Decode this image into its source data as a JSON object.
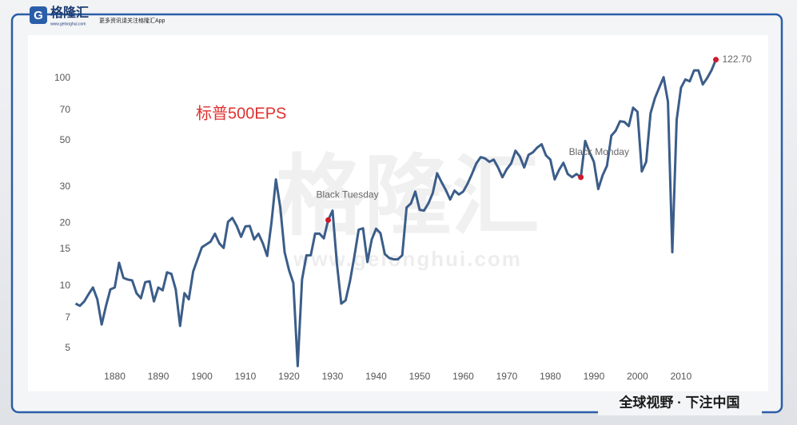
{
  "header": {
    "logo": "格隆汇",
    "site": "www.gelonghui.com",
    "tagline": "更多资讯请关注格隆汇App"
  },
  "watermark": {
    "main": "格隆汇",
    "site": "www.gelonghui.com"
  },
  "footer": "全球视野 · 下注中国",
  "chart_data": {
    "type": "line",
    "title": "标普500EPS",
    "color": "#3b5d89",
    "log_y": true,
    "grid": false,
    "x": [
      1871,
      1872,
      1873,
      1874,
      1875,
      1876,
      1877,
      1878,
      1879,
      1880,
      1881,
      1882,
      1883,
      1884,
      1885,
      1886,
      1887,
      1888,
      1889,
      1890,
      1891,
      1892,
      1893,
      1894,
      1895,
      1896,
      1897,
      1898,
      1899,
      1900,
      1901,
      1902,
      1903,
      1904,
      1905,
      1906,
      1907,
      1908,
      1909,
      1910,
      1911,
      1912,
      1913,
      1914,
      1915,
      1916,
      1917,
      1918,
      1919,
      1920,
      1921,
      1922,
      1923,
      1924,
      1925,
      1926,
      1927,
      1928,
      1929,
      1930,
      1931,
      1932,
      1933,
      1934,
      1935,
      1936,
      1937,
      1938,
      1939,
      1940,
      1941,
      1942,
      1943,
      1944,
      1945,
      1946,
      1947,
      1948,
      1949,
      1950,
      1951,
      1952,
      1953,
      1954,
      1955,
      1956,
      1957,
      1958,
      1959,
      1960,
      1961,
      1962,
      1963,
      1964,
      1965,
      1966,
      1967,
      1968,
      1969,
      1970,
      1971,
      1972,
      1973,
      1974,
      1975,
      1976,
      1977,
      1978,
      1979,
      1980,
      1981,
      1982,
      1983,
      1984,
      1985,
      1986,
      1987,
      1988,
      1989,
      1990,
      1991,
      1992,
      1993,
      1994,
      1995,
      1996,
      1997,
      1998,
      1999,
      2000,
      2001,
      2002,
      2003,
      2004,
      2005,
      2006,
      2007,
      2008,
      2009,
      2010,
      2011,
      2012,
      2013,
      2014,
      2015,
      2016,
      2017,
      2018
    ],
    "values": [
      8.2,
      8.0,
      8.4,
      9.1,
      9.8,
      8.6,
      6.5,
      8.0,
      9.6,
      9.8,
      12.9,
      10.9,
      10.7,
      10.6,
      9.2,
      8.7,
      10.4,
      10.5,
      8.4,
      9.8,
      9.5,
      11.6,
      11.4,
      9.6,
      6.4,
      9.2,
      8.6,
      11.7,
      13.4,
      15.3,
      15.8,
      16.3,
      17.8,
      16.0,
      15.2,
      20.3,
      21.2,
      19.4,
      17.2,
      19.3,
      19.4,
      16.7,
      17.8,
      16.0,
      13.9,
      20.3,
      32.5,
      23.8,
      14.5,
      11.9,
      10.3,
      4.1,
      10.7,
      14.0,
      14.0,
      17.8,
      17.8,
      16.9,
      20.7,
      23.0,
      12.8,
      8.2,
      8.5,
      10.5,
      13.8,
      18.6,
      18.9,
      13.0,
      16.7,
      18.8,
      17.9,
      14.2,
      13.6,
      13.4,
      13.4,
      14.0,
      23.8,
      24.9,
      28.4,
      23.2,
      23.0,
      24.9,
      27.9,
      34.8,
      31.6,
      28.9,
      26.0,
      28.7,
      27.5,
      28.4,
      31.0,
      34.5,
      38.8,
      41.6,
      41.0,
      39.5,
      40.5,
      37.1,
      33.3,
      36.4,
      38.8,
      44.7,
      41.9,
      37.1,
      42.7,
      43.9,
      46.3,
      48.0,
      42.4,
      40.5,
      32.5,
      36.1,
      39.1,
      34.5,
      33.3,
      34.5,
      33.3,
      49.8,
      43.9,
      39.5,
      29.2,
      34.0,
      37.8,
      52.8,
      55.8,
      62.0,
      61.5,
      58.7,
      72.0,
      68.8,
      35.5,
      39.5,
      67.6,
      80,
      90,
      101,
      77.0,
      14.5,
      63.0,
      90,
      98.5,
      96.5,
      108.9,
      108.9,
      93.2,
      100,
      109,
      122.7
    ],
    "annotations": [
      {
        "text": "Black Tuesday",
        "x": 1929
      },
      {
        "text": "Black Monday",
        "x": 1987
      },
      {
        "text": "122.70",
        "x": 2018
      }
    ],
    "marker_color": "#d0192a",
    "xlim": [
      1861,
      2028
    ],
    "xticks": [
      1880,
      1890,
      1900,
      1910,
      1920,
      1930,
      1940,
      1950,
      1960,
      1970,
      1980,
      1990,
      2000,
      2010
    ],
    "ylim": [
      4,
      150
    ],
    "yticks": [
      5,
      7,
      10,
      15,
      20,
      30,
      50,
      70,
      100
    ]
  }
}
